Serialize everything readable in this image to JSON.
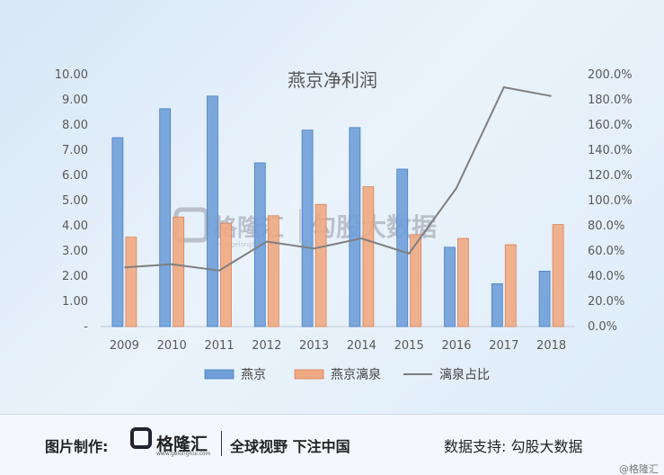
{
  "chart_data": {
    "type": "bar",
    "title": "燕京净利润",
    "categories": [
      "2009",
      "2010",
      "2011",
      "2012",
      "2013",
      "2014",
      "2015",
      "2016",
      "2017",
      "2018"
    ],
    "series": [
      {
        "name": "燕京",
        "type": "bar",
        "axis": "left",
        "color": "#6f9fd8",
        "values": [
          7.5,
          8.65,
          9.15,
          6.5,
          7.8,
          7.9,
          6.25,
          3.15,
          1.7,
          2.2
        ]
      },
      {
        "name": "燕京漓泉",
        "type": "bar",
        "axis": "left",
        "color": "#f0a882",
        "values": [
          3.55,
          4.35,
          4.1,
          4.4,
          4.85,
          5.55,
          3.65,
          3.5,
          3.25,
          4.05
        ]
      },
      {
        "name": "漓泉占比",
        "type": "line",
        "axis": "right",
        "color": "#7f7f7f",
        "values": [
          47,
          49.5,
          44.5,
          67.5,
          62,
          70,
          58,
          110,
          190,
          183
        ]
      }
    ],
    "left_axis": {
      "ylim": [
        0,
        10
      ],
      "ticks": [
        "-",
        "1.00",
        "2.00",
        "3.00",
        "4.00",
        "5.00",
        "6.00",
        "7.00",
        "8.00",
        "9.00",
        "10.00"
      ]
    },
    "right_axis": {
      "ylim": [
        0,
        200
      ],
      "ticks": [
        "0.0%",
        "20.0%",
        "40.0%",
        "60.0%",
        "80.0%",
        "100.0%",
        "120.0%",
        "140.0%",
        "160.0%",
        "180.0%",
        "200.0%"
      ]
    },
    "grid": false,
    "legend_position": "bottom"
  },
  "watermark": {
    "brand": "格隆汇",
    "brand_url": "www.gelonghui.com",
    "source": "勾股大数据"
  },
  "footer": {
    "made_by_label": "图片制作:",
    "brand": "格隆汇",
    "brand_sub": "www.gelonghui.com",
    "slogan": "全球视野 下注中国",
    "data_support": "数据支持: 勾股大数据",
    "corner_watermark": "@格隆汇"
  }
}
